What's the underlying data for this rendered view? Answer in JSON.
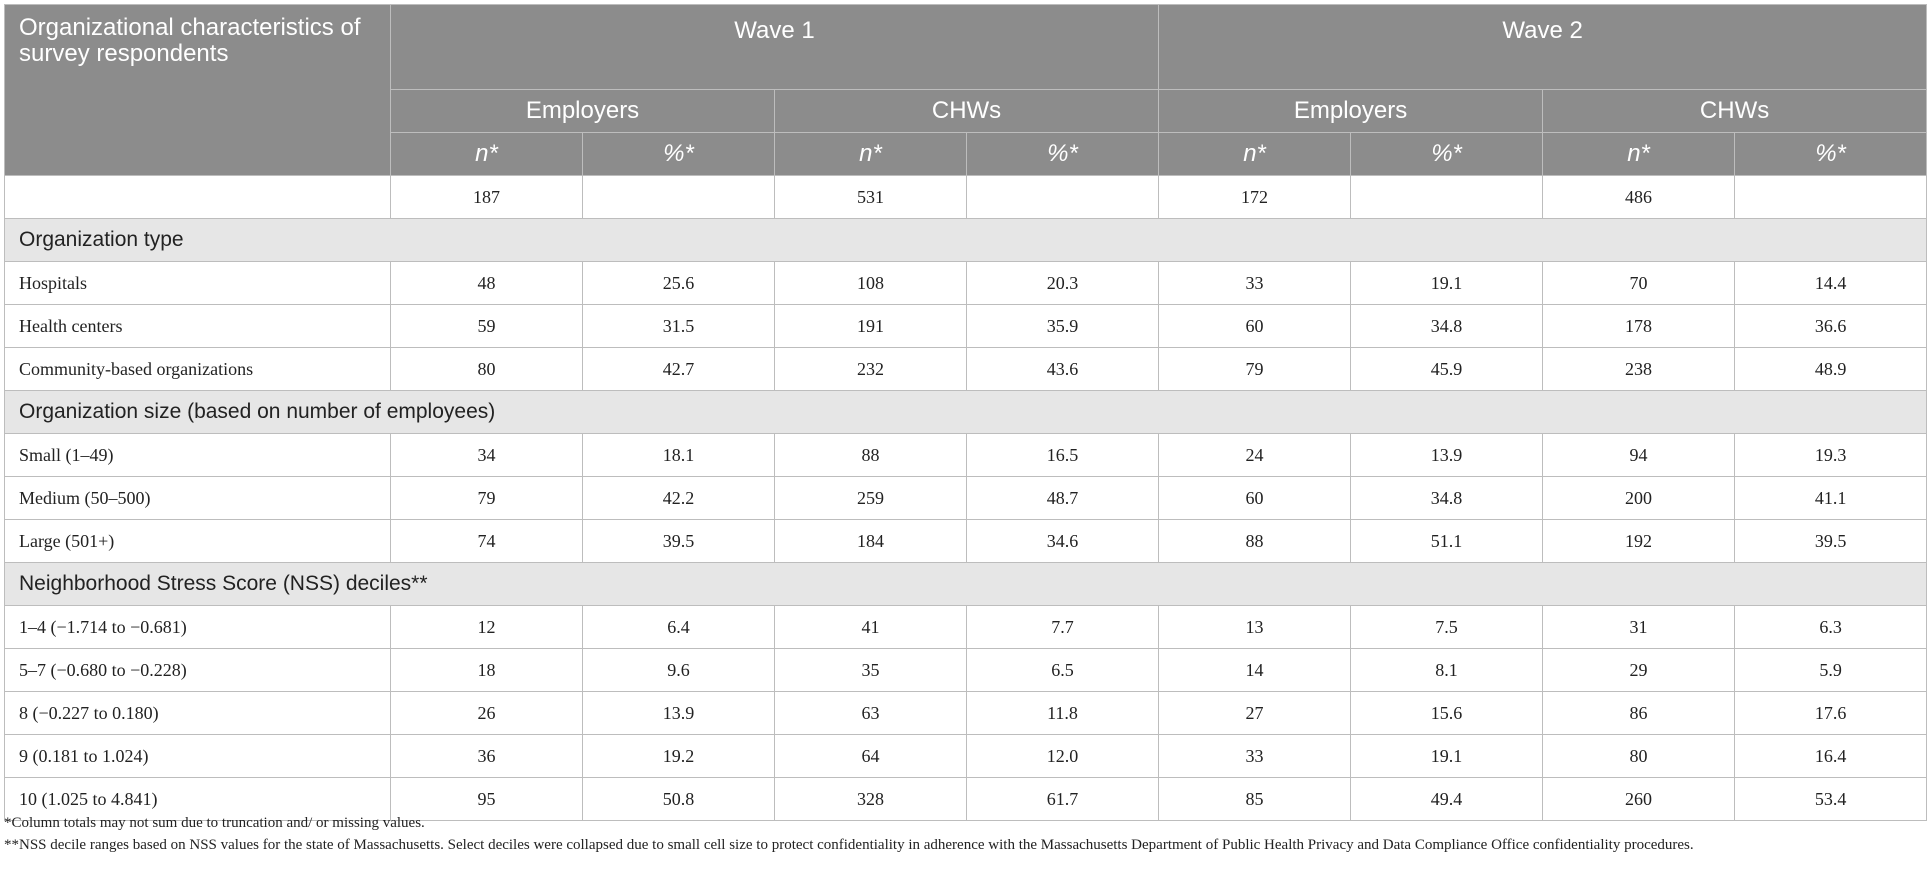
{
  "header": {
    "row_label": "Organizational characteristics of survey respondents",
    "waves": [
      "Wave 1",
      "Wave 2"
    ],
    "groups": [
      "Employers",
      "CHWs",
      "Employers",
      "CHWs"
    ],
    "sub": [
      "n*",
      "%*",
      "n*",
      "%*",
      "n*",
      "%*",
      "n*",
      "%*"
    ]
  },
  "totals": [
    "187",
    "",
    "531",
    "",
    "172",
    "",
    "486",
    ""
  ],
  "sections": [
    {
      "title": "Organization type",
      "rows": [
        {
          "label": "Hospitals",
          "values": [
            "48",
            "25.6",
            "108",
            "20.3",
            "33",
            "19.1",
            "70",
            "14.4"
          ]
        },
        {
          "label": "Health centers",
          "values": [
            "59",
            "31.5",
            "191",
            "35.9",
            "60",
            "34.8",
            "178",
            "36.6"
          ]
        },
        {
          "label": "Community-based organizations",
          "values": [
            "80",
            "42.7",
            "232",
            "43.6",
            "79",
            "45.9",
            "238",
            "48.9"
          ]
        }
      ]
    },
    {
      "title": "Organization size (based on number of employees)",
      "rows": [
        {
          "label": "Small (1–49)",
          "values": [
            "34",
            "18.1",
            "88",
            "16.5",
            "24",
            "13.9",
            "94",
            "19.3"
          ]
        },
        {
          "label": "Medium (50–500)",
          "values": [
            "79",
            "42.2",
            "259",
            "48.7",
            "60",
            "34.8",
            "200",
            "41.1"
          ]
        },
        {
          "label": "Large (501+)",
          "values": [
            "74",
            "39.5",
            "184",
            "34.6",
            "88",
            "51.1",
            "192",
            "39.5"
          ]
        }
      ]
    },
    {
      "title": "Neighborhood Stress Score (NSS) deciles**",
      "rows": [
        {
          "label": "1–4 (−1.714 to −0.681)",
          "values": [
            "12",
            "6.4",
            "41",
            "7.7",
            "13",
            "7.5",
            "31",
            "6.3"
          ]
        },
        {
          "label": "5–7 (−0.680 to −0.228)",
          "values": [
            "18",
            "9.6",
            "35",
            "6.5",
            "14",
            "8.1",
            "29",
            "5.9"
          ]
        },
        {
          "label": "8 (−0.227 to 0.180)",
          "values": [
            "26",
            "13.9",
            "63",
            "11.8",
            "27",
            "15.6",
            "86",
            "17.6"
          ]
        },
        {
          "label": "9 (0.181 to 1.024)",
          "values": [
            "36",
            "19.2",
            "64",
            "12.0",
            "33",
            "19.1",
            "80",
            "16.4"
          ]
        },
        {
          "label": "10 (1.025 to 4.841)",
          "values": [
            "95",
            "50.8",
            "328",
            "61.7",
            "85",
            "49.4",
            "260",
            "53.4"
          ]
        }
      ]
    }
  ],
  "footnotes": [
    "*Column totals may not sum due to truncation and/ or missing values.",
    "**NSS decile ranges based on NSS values for the state of Massachusetts. Select deciles were collapsed due to small cell size to protect confidentiality in adherence with the Massachusetts Department of Public Health Privacy and Data Compliance Office confidentiality procedures."
  ]
}
